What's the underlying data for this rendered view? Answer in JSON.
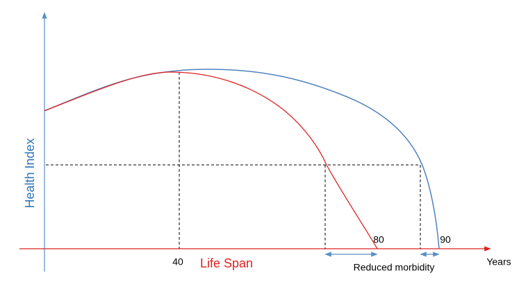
{
  "axes": {
    "y_label": "Health Index",
    "x_label": "Life Span",
    "x_unit": "Years"
  },
  "ticks": [
    "40",
    "80",
    "90"
  ],
  "annotation": "Reduced morbidity"
}
